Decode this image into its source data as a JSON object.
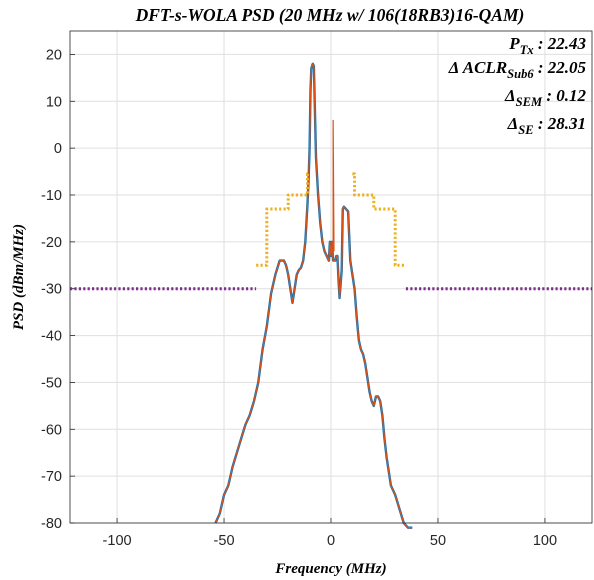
{
  "chart_data": {
    "type": "line",
    "title": "DFT-s-WOLA PSD (20 MHz w/ 106(18RB3)16-QAM)",
    "xlabel": "Frequency (MHz)",
    "ylabel": "PSD (dBm/MHz)",
    "xlim": [
      -122,
      122
    ],
    "ylim": [
      -80,
      25
    ],
    "xticks": [
      -100,
      -50,
      0,
      50,
      100
    ],
    "yticks": [
      20,
      10,
      0,
      -10,
      -20,
      -30,
      -40,
      -50,
      -60,
      -70,
      -80
    ],
    "grid": true,
    "annotations": [
      {
        "main": "P",
        "sub": "Tx",
        "value": ": 22.43"
      },
      {
        "main": "Δ ACLR",
        "sub": "Sub6",
        "value": ": 22.05"
      },
      {
        "main": "Δ",
        "sub": "SEM",
        "value": ": 0.12"
      },
      {
        "main": "Δ",
        "sub": "SE",
        "value": ": 28.31"
      }
    ],
    "series": [
      {
        "role": "psd-measured",
        "color": "#0072bd",
        "x": [
          -54,
          -52,
          -50,
          -48,
          -46,
          -44,
          -42,
          -40,
          -38,
          -36,
          -34,
          -32,
          -30,
          -28,
          -26,
          -24,
          -22,
          -21,
          -20,
          -19,
          -18,
          -17,
          -16,
          -15,
          -14,
          -13,
          -12,
          -11,
          -10.5,
          -10,
          -9.6,
          -9.2,
          -8.5,
          -8,
          -7,
          -6,
          -5,
          -4,
          -3,
          -2,
          -1.5,
          -1,
          -0.5,
          0,
          0.5,
          1,
          2,
          2.5,
          3,
          3.5,
          4,
          5,
          5.5,
          6,
          7,
          8,
          9,
          10,
          11,
          12,
          13,
          14,
          15,
          16,
          17,
          18,
          19,
          20,
          21,
          22,
          23,
          24,
          25,
          26,
          28,
          30,
          32,
          34,
          36,
          38
        ],
        "y": [
          -80,
          -78,
          -74,
          -72,
          -68,
          -65,
          -62,
          -59,
          -57,
          -54,
          -50,
          -43,
          -38,
          -31,
          -27,
          -24,
          -24,
          -25,
          -27,
          -30,
          -33,
          -30,
          -27,
          -26,
          -25.5,
          -24,
          -20,
          -12,
          -7,
          0,
          12,
          17,
          18,
          17.5,
          -2,
          -10,
          -16,
          -20,
          -22,
          -23,
          -23.5,
          -24,
          -20,
          -23,
          -20,
          -24,
          -24,
          -23,
          -23,
          -28,
          -32,
          -26,
          -13,
          -12.5,
          -13,
          -13.5,
          -24,
          -27,
          -30,
          -36,
          -41,
          -43,
          -44,
          -46,
          -49,
          -52,
          -54,
          -55,
          -53,
          -53,
          -54,
          -57,
          -62,
          -66,
          -72,
          -74,
          -77,
          -80,
          -81,
          -81
        ]
      },
      {
        "role": "psd-reference",
        "color": "#d95319",
        "x": [
          -54,
          -52,
          -50,
          -48,
          -46,
          -44,
          -42,
          -40,
          -38,
          -36,
          -34,
          -32,
          -30,
          -28,
          -26,
          -24,
          -22,
          -21,
          -20,
          -19,
          -18,
          -17,
          -16,
          -15,
          -14,
          -13,
          -12,
          -11,
          -10.5,
          -10,
          -9.6,
          -9.2,
          -8.5,
          -8,
          -7,
          -6,
          -5,
          -4,
          -3,
          -2,
          -1.5,
          -1,
          -0.5,
          0,
          0.5,
          1,
          2,
          2.5,
          3,
          3.5,
          4,
          5,
          5.5,
          6,
          7,
          8,
          9,
          10,
          11,
          12,
          13,
          14,
          15,
          16,
          17,
          18,
          19,
          20,
          21,
          22,
          23,
          24,
          25,
          26,
          28,
          30,
          32,
          34,
          36,
          38
        ],
        "y": [
          -80,
          -78,
          -74,
          -72,
          -68,
          -65,
          -62,
          -59,
          -57,
          -54,
          -50,
          -43,
          -38,
          -31,
          -27,
          -24,
          -24,
          -25,
          -27,
          -30,
          -33,
          -30,
          -27,
          -26,
          -25.5,
          -24,
          -20,
          -12,
          -7,
          0,
          12,
          17,
          18,
          17.5,
          -2,
          -10,
          -16,
          -20,
          -22,
          -23,
          -23.5,
          -24,
          -20,
          -23,
          -20,
          -24,
          -24,
          -23,
          -23,
          -28,
          -32,
          -26,
          -13,
          -12.5,
          -13,
          -13.5,
          -24,
          -27,
          -30,
          -36,
          -41,
          -43,
          -44,
          -46,
          -49,
          -52,
          -54,
          -55,
          -53,
          -53,
          -54,
          -57,
          -62,
          -66,
          -72,
          -74,
          -77,
          -80,
          -81,
          -81
        ]
      },
      {
        "role": "sem-mask",
        "color": "#edb120",
        "style": "dotted",
        "x": [
          -35,
          -30,
          -30,
          -20,
          -20,
          -11,
          -11,
          -10,
          -10,
          -10,
          10,
          10,
          11,
          11,
          20,
          20,
          30,
          30,
          35
        ],
        "y": [
          -25,
          -25,
          -13,
          -13,
          -10,
          -10,
          -5.5,
          -5.5,
          null,
          null,
          null,
          -5.5,
          -5.5,
          -10,
          -10,
          -13,
          -13,
          -25,
          -25
        ]
      },
      {
        "role": "spurious-limit-left",
        "color": "#7e2f8e",
        "style": "dotted",
        "x": [
          -122,
          -35
        ],
        "y": [
          -30,
          -30
        ]
      },
      {
        "role": "spurious-limit-right",
        "color": "#7e2f8e",
        "style": "dotted",
        "x": [
          35,
          122
        ],
        "y": [
          -30,
          -30
        ]
      }
    ]
  }
}
